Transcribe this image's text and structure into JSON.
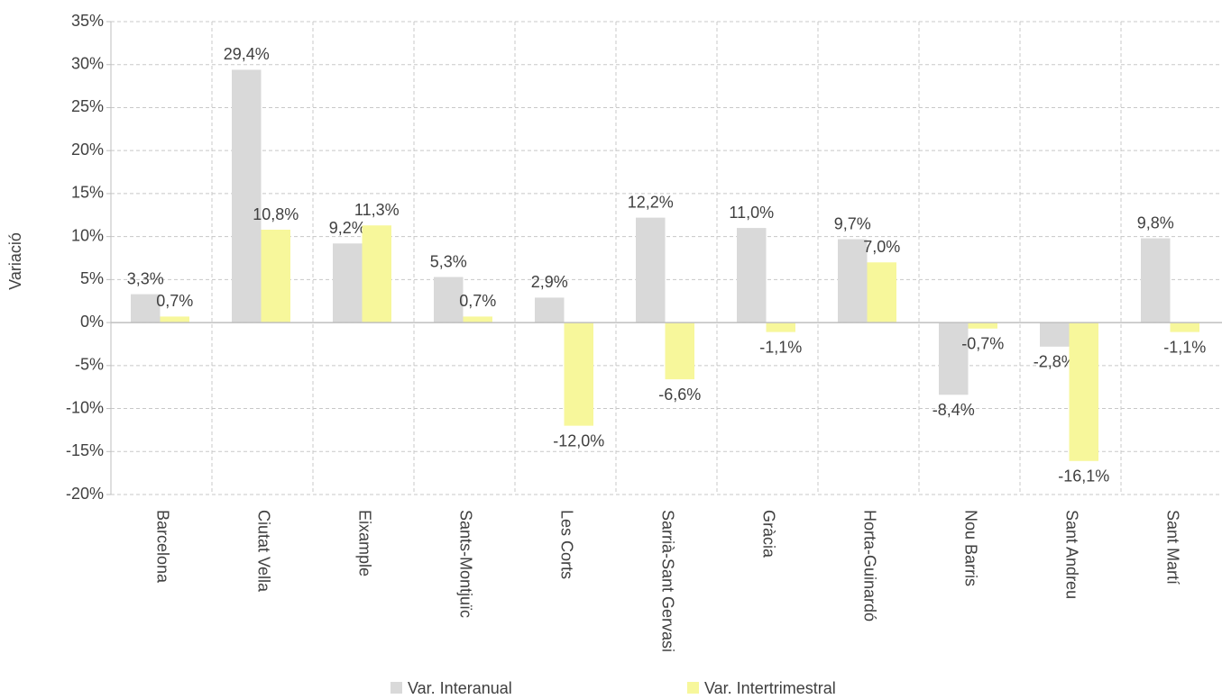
{
  "chart_data": {
    "type": "bar",
    "y_label": "Variació",
    "categories": [
      "Barcelona",
      "Ciutat Vella",
      "Eixample",
      "Sants-Montjuïc",
      "Les Corts",
      "Sarrià-Sant Gervasi",
      "Gràcia",
      "Horta-Guinardó",
      "Nou Barris",
      "Sant Andreu",
      "Sant Martí"
    ],
    "series": [
      {
        "name": "Var. Interanual",
        "color": "#d9d9d9",
        "values": [
          3.3,
          29.4,
          9.2,
          5.3,
          2.9,
          12.2,
          11.0,
          9.7,
          -8.4,
          -2.8,
          9.8
        ],
        "value_labels": [
          "3,3%",
          "29,4%",
          "9,2%",
          "5,3%",
          "2,9%",
          "12,2%",
          "11,0%",
          "9,7%",
          "-8,4%",
          "-2,8%",
          "9,8%"
        ]
      },
      {
        "name": "Var. Intertrimestral",
        "color": "#f7f79b",
        "values": [
          0.7,
          10.8,
          11.3,
          0.7,
          -12.0,
          -6.6,
          -1.1,
          7.0,
          -0.7,
          -16.1,
          -1.1
        ],
        "value_labels": [
          "0,7%",
          "10,8%",
          "11,3%",
          "0,7%",
          "-12,0%",
          "-6,6%",
          "-1,1%",
          "7,0%",
          "-0,7%",
          "-16,1%",
          "-1,1%"
        ]
      }
    ],
    "ylim": [
      -20,
      35
    ],
    "yticks": [
      {
        "value": -20,
        "label": "-20%"
      },
      {
        "value": -15,
        "label": "-15%"
      },
      {
        "value": -10,
        "label": "-10%"
      },
      {
        "value": -5,
        "label": "-5%"
      },
      {
        "value": 0,
        "label": "0%"
      },
      {
        "value": 5,
        "label": "5%"
      },
      {
        "value": 10,
        "label": "10%"
      },
      {
        "value": 15,
        "label": "15%"
      },
      {
        "value": 20,
        "label": "20%"
      },
      {
        "value": 25,
        "label": "25%"
      },
      {
        "value": 30,
        "label": "30%"
      },
      {
        "value": 35,
        "label": "35%"
      }
    ],
    "grid": true,
    "legend": "bottom"
  }
}
